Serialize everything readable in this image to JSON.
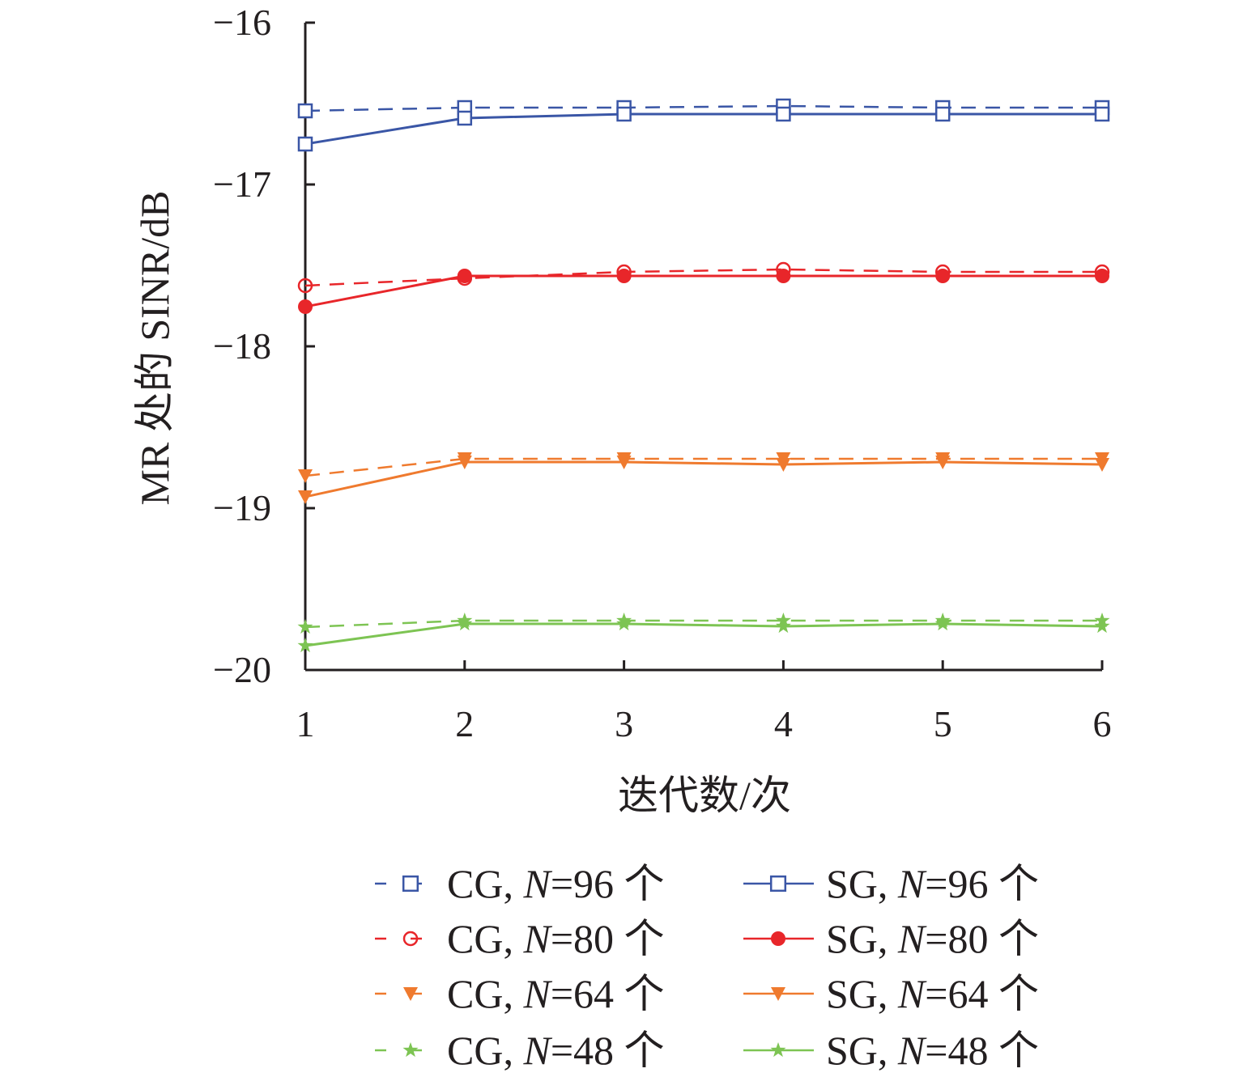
{
  "chart_data": {
    "type": "line",
    "title": "",
    "xlabel": "迭代数/次",
    "ylabel": "MR 处的 SINR/dB",
    "x": [
      1,
      2,
      3,
      4,
      5,
      6
    ],
    "xlim": [
      1,
      6
    ],
    "ylim": [
      -20,
      -16
    ],
    "xticks": [
      "1",
      "2",
      "3",
      "4",
      "5",
      "6"
    ],
    "yticks": [
      -16,
      -17,
      -18,
      -19,
      -20
    ],
    "ytick_labels": [
      "−16",
      "−17",
      "−18",
      "−19",
      "−20"
    ],
    "grid": false,
    "legend_placement": "bottom",
    "series": [
      {
        "name": "CG, N=96 个",
        "color": "#3a56a6",
        "dash": true,
        "marker": "square-open",
        "values": [
          -16.545,
          -16.525,
          -16.525,
          -16.515,
          -16.525,
          -16.525
        ]
      },
      {
        "name": "SG, N=96 个",
        "color": "#3a56a6",
        "dash": false,
        "marker": "square-open",
        "values": [
          -16.75,
          -16.59,
          -16.565,
          -16.565,
          -16.565,
          -16.565
        ]
      },
      {
        "name": "CG, N=80 个",
        "color": "#e8262a",
        "dash": true,
        "marker": "circle-open",
        "values": [
          -17.625,
          -17.58,
          -17.54,
          -17.525,
          -17.54,
          -17.54
        ]
      },
      {
        "name": "SG, N=80 个",
        "color": "#e8262a",
        "dash": false,
        "marker": "circle-filled",
        "values": [
          -17.755,
          -17.565,
          -17.565,
          -17.565,
          -17.565,
          -17.565
        ]
      },
      {
        "name": "CG, N=64 个",
        "color": "#ef7a2e",
        "dash": true,
        "marker": "triangle-down",
        "values": [
          -18.8,
          -18.695,
          -18.695,
          -18.695,
          -18.695,
          -18.695
        ]
      },
      {
        "name": "SG, N=64 个",
        "color": "#ef7a2e",
        "dash": false,
        "marker": "triangle-down",
        "values": [
          -18.93,
          -18.715,
          -18.715,
          -18.73,
          -18.715,
          -18.73
        ]
      },
      {
        "name": "CG, N=48 个",
        "color": "#7dc453",
        "dash": true,
        "marker": "star",
        "values": [
          -19.735,
          -19.695,
          -19.695,
          -19.695,
          -19.695,
          -19.695
        ]
      },
      {
        "name": "SG, N=48 个",
        "color": "#7dc453",
        "dash": false,
        "marker": "star",
        "values": [
          -19.85,
          -19.715,
          -19.715,
          -19.73,
          -19.715,
          -19.73
        ]
      }
    ]
  }
}
